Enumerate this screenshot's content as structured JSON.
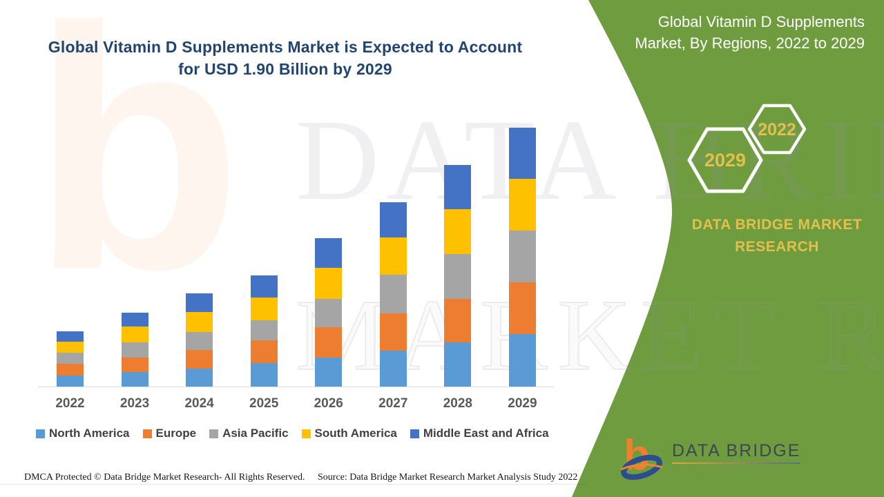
{
  "title": {
    "line1": "Global Vitamin D Supplements Market is Expected to Account",
    "line2": "for USD 1.90 Billion by 2029",
    "color": "#21456f"
  },
  "side_panel": {
    "heading": "Global Vitamin D Supplements Market, By Regions, 2022 to 2029",
    "hexagons": [
      {
        "label": "2029"
      },
      {
        "label": "2022"
      }
    ],
    "brand_text": "DATA BRIDGE MARKET RESEARCH",
    "background_color": "#6f9c3f",
    "heading_color": "#ffffff",
    "gold_color": "#e3bf4e"
  },
  "watermark": {
    "letter": "b",
    "line1": "DATA BRIDGE",
    "line2": "MARKET RESEARCH"
  },
  "chart_data": {
    "type": "bar",
    "stacked": true,
    "unit": "USD Billion (estimated from bar heights)",
    "categories": [
      "2022",
      "2023",
      "2024",
      "2025",
      "2026",
      "2027",
      "2028",
      "2029"
    ],
    "series": [
      {
        "name": "North America",
        "color": "#5b9bd5",
        "values": [
          0.081,
          0.106,
          0.132,
          0.172,
          0.213,
          0.263,
          0.324,
          0.385
        ]
      },
      {
        "name": "Europe",
        "color": "#ed7d31",
        "values": [
          0.086,
          0.106,
          0.137,
          0.167,
          0.223,
          0.274,
          0.319,
          0.38
        ]
      },
      {
        "name": "Asia Pacific",
        "color": "#a5a5a5",
        "values": [
          0.081,
          0.112,
          0.132,
          0.147,
          0.208,
          0.284,
          0.329,
          0.38
        ]
      },
      {
        "name": "South America",
        "color": "#ffc000",
        "values": [
          0.081,
          0.117,
          0.147,
          0.167,
          0.228,
          0.274,
          0.329,
          0.38
        ]
      },
      {
        "name": "Middle East and Africa",
        "color": "#4472c4",
        "values": [
          0.076,
          0.101,
          0.137,
          0.162,
          0.218,
          0.258,
          0.324,
          0.375
        ]
      }
    ],
    "totals": [
      0.41,
      0.54,
      0.69,
      0.82,
      1.09,
      1.35,
      1.63,
      1.9
    ],
    "ylim": [
      0,
      1.95
    ],
    "grid": false,
    "legend_position": "bottom",
    "axis_label_color": "#595959",
    "axis_line_color": "#d9d9d9"
  },
  "logo": {
    "title": "DATA BRIDGE",
    "subtitle": "MARKET RESEARCH"
  },
  "footer": {
    "left": "DMCA Protected © Data Bridge Market Research- All Rights Reserved.",
    "right": "Source: Data Bridge Market Research Market Analysis Study 2022"
  }
}
